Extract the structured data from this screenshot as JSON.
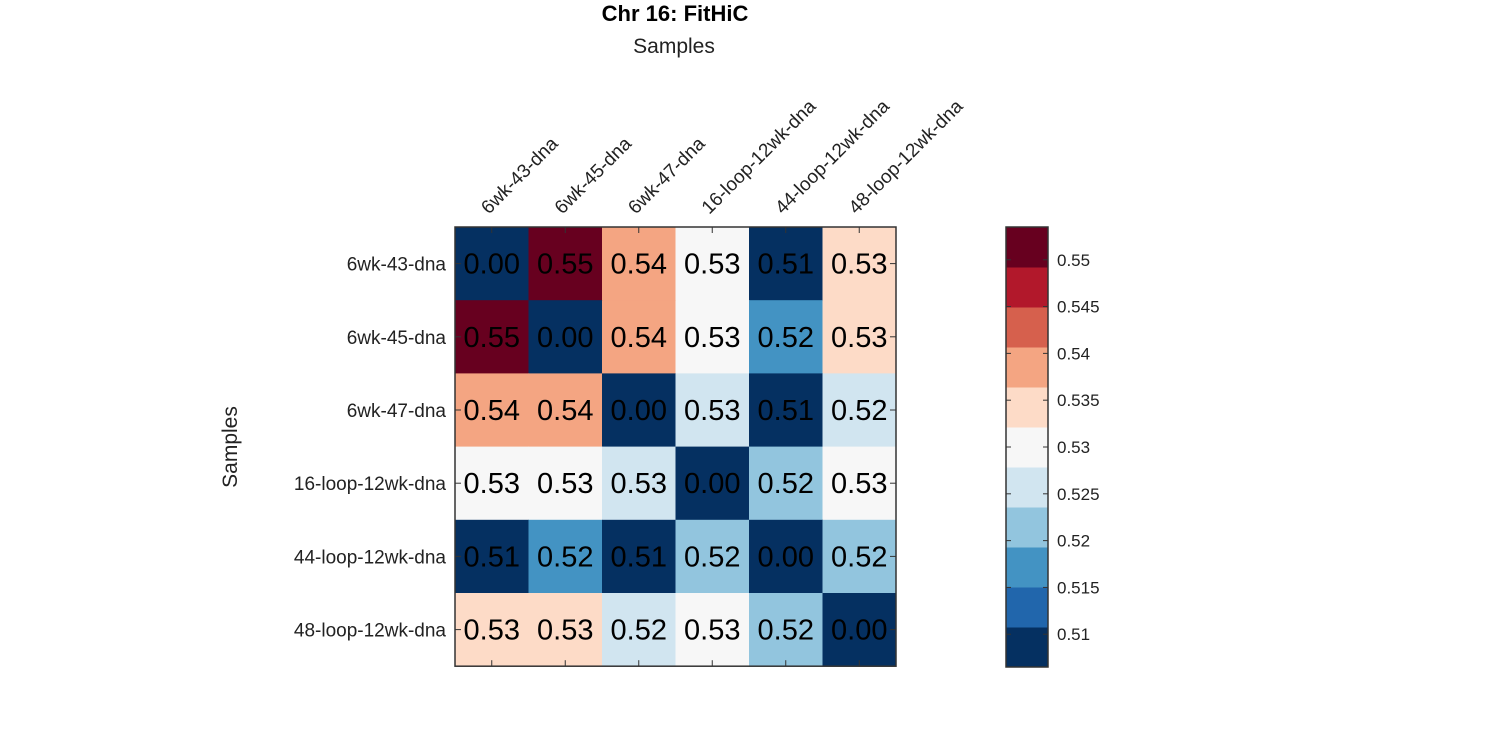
{
  "chart_data": {
    "type": "heatmap",
    "title": "Chr 16: FitHiC",
    "xlabel": "Samples",
    "ylabel": "Samples",
    "x_categories": [
      "6wk-43-dna",
      "6wk-45-dna",
      "6wk-47-dna",
      "16-loop-12wk-dna",
      "44-loop-12wk-dna",
      "48-loop-12wk-dna"
    ],
    "y_categories": [
      "6wk-43-dna",
      "6wk-45-dna",
      "6wk-47-dna",
      "16-loop-12wk-dna",
      "44-loop-12wk-dna",
      "48-loop-12wk-dna"
    ],
    "values": [
      [
        "0.00",
        "0.55",
        "0.54",
        "0.53",
        "0.51",
        "0.53"
      ],
      [
        "0.55",
        "0.00",
        "0.54",
        "0.53",
        "0.52",
        "0.53"
      ],
      [
        "0.54",
        "0.54",
        "0.00",
        "0.53",
        "0.51",
        "0.52"
      ],
      [
        "0.53",
        "0.53",
        "0.53",
        "0.00",
        "0.52",
        "0.53"
      ],
      [
        "0.51",
        "0.52",
        "0.51",
        "0.52",
        "0.00",
        "0.52"
      ],
      [
        "0.53",
        "0.53",
        "0.52",
        "0.53",
        "0.52",
        "0.00"
      ]
    ],
    "cell_colors": [
      [
        "#053061",
        "#67001f",
        "#f4a582",
        "#f7f7f7",
        "#053061",
        "#fddbc7"
      ],
      [
        "#67001f",
        "#053061",
        "#f4a582",
        "#f7f7f7",
        "#4393c3",
        "#fddbc7"
      ],
      [
        "#f4a582",
        "#f4a582",
        "#053061",
        "#d1e5f0",
        "#053061",
        "#d1e5f0"
      ],
      [
        "#f7f7f7",
        "#f7f7f7",
        "#d1e5f0",
        "#053061",
        "#92c5de",
        "#f7f7f7"
      ],
      [
        "#053061",
        "#4393c3",
        "#053061",
        "#92c5de",
        "#053061",
        "#92c5de"
      ],
      [
        "#fddbc7",
        "#fddbc7",
        "#d1e5f0",
        "#f7f7f7",
        "#92c5de",
        "#053061"
      ]
    ],
    "colorbar": {
      "colors": [
        "#053061",
        "#2166ac",
        "#4393c3",
        "#92c5de",
        "#d1e5f0",
        "#f7f7f7",
        "#fddbc7",
        "#f4a582",
        "#d6604d",
        "#b2182b",
        "#67001f"
      ],
      "range": [
        0.5065,
        0.5535
      ],
      "ticks": [
        0.51,
        0.515,
        0.52,
        0.525,
        0.53,
        0.535,
        0.54,
        0.545,
        0.55
      ],
      "tick_labels": [
        "0.51",
        "0.515",
        "0.52",
        "0.525",
        "0.53",
        "0.535",
        "0.54",
        "0.545",
        "0.55"
      ]
    },
    "grid": false,
    "legend": "colorbar right"
  }
}
